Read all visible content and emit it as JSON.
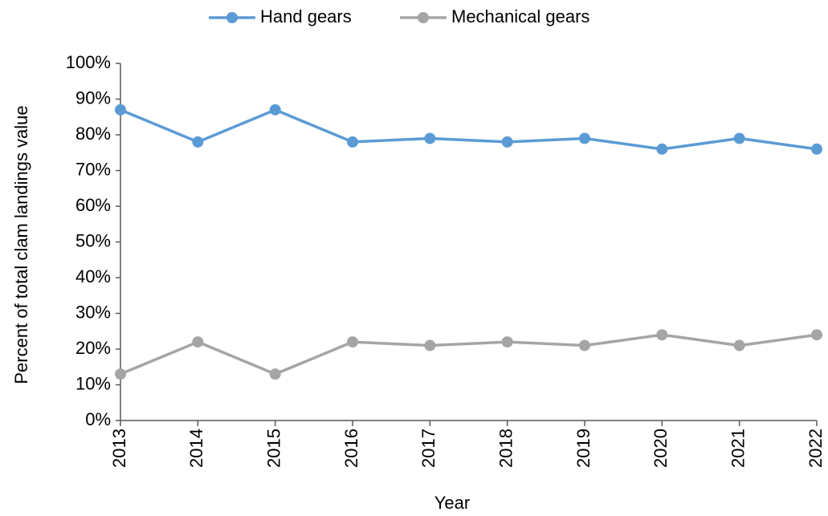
{
  "chart_data": {
    "type": "line",
    "x_label": "Year",
    "y_label": "Percent of total clam landings  value",
    "categories": [
      "2013",
      "2014",
      "2015",
      "2016",
      "2017",
      "2018",
      "2019",
      "2020",
      "2021",
      "2022"
    ],
    "series": [
      {
        "name": "Hand gears",
        "color": "#5b9bd5",
        "values": [
          87,
          78,
          87,
          78,
          79,
          78,
          79,
          76,
          79,
          76
        ]
      },
      {
        "name": "Mechanical gears",
        "color": "#a5a5a5",
        "values": [
          13,
          22,
          13,
          22,
          21,
          22,
          21,
          24,
          21,
          24
        ]
      }
    ],
    "ylim": [
      0,
      100
    ],
    "yticks": [
      {
        "value": 0,
        "label": "0%"
      },
      {
        "value": 10,
        "label": "10%"
      },
      {
        "value": 20,
        "label": "20%"
      },
      {
        "value": 30,
        "label": "30%"
      },
      {
        "value": 40,
        "label": "40%"
      },
      {
        "value": 50,
        "label": "50%"
      },
      {
        "value": 60,
        "label": "60%"
      },
      {
        "value": 70,
        "label": "70%"
      },
      {
        "value": 80,
        "label": "80%"
      },
      {
        "value": 90,
        "label": "90%"
      },
      {
        "value": 100,
        "label": "100%"
      }
    ],
    "grid": false,
    "legend": "top"
  }
}
